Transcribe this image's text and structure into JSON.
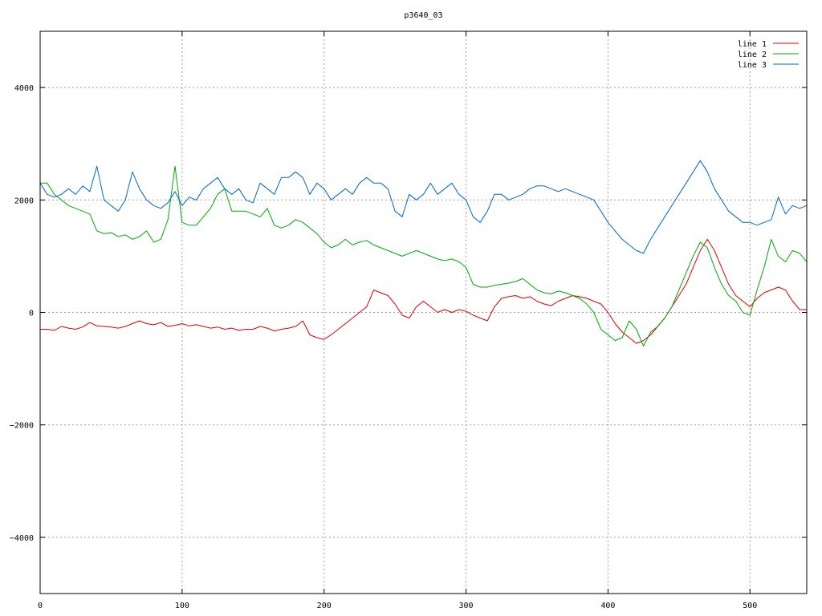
{
  "chart_data": {
    "type": "line",
    "title": "p3640_03",
    "xlabel": "",
    "ylabel": "",
    "xlim": [
      0,
      540
    ],
    "ylim": [
      -5000,
      5000
    ],
    "xticks": [
      0,
      100,
      200,
      300,
      400,
      500
    ],
    "yticks": [
      -4000,
      -2000,
      0,
      2000,
      4000
    ],
    "xtick_labels": [
      "0",
      "100",
      "200",
      "300",
      "400",
      "500"
    ],
    "ytick_labels": [
      "−4000",
      "−2000",
      "0",
      "2000",
      "4000"
    ],
    "grid": true,
    "legend_position": "top-right",
    "series": [
      {
        "name": "line 1",
        "color": "#dd0000",
        "x": [
          0,
          5,
          10,
          15,
          20,
          25,
          30,
          35,
          40,
          45,
          50,
          55,
          60,
          65,
          70,
          75,
          80,
          85,
          90,
          95,
          100,
          105,
          110,
          115,
          120,
          125,
          130,
          135,
          140,
          145,
          150,
          155,
          160,
          165,
          170,
          175,
          180,
          185,
          190,
          195,
          200,
          205,
          210,
          215,
          220,
          225,
          230,
          235,
          240,
          245,
          250,
          255,
          260,
          265,
          270,
          275,
          280,
          285,
          290,
          295,
          300,
          305,
          310,
          315,
          320,
          325,
          330,
          335,
          340,
          345,
          350,
          355,
          360,
          365,
          370,
          375,
          380,
          385,
          390,
          395,
          400,
          405,
          410,
          415,
          420,
          425,
          430,
          435,
          440,
          445,
          450,
          455,
          460,
          465,
          470,
          475,
          480,
          485,
          490,
          495,
          500,
          505,
          510,
          515,
          520,
          525,
          530,
          535,
          540
        ],
        "y": [
          -300,
          -300,
          -320,
          -250,
          -280,
          -300,
          -260,
          -180,
          -240,
          -250,
          -260,
          -280,
          -250,
          -200,
          -150,
          -200,
          -220,
          -180,
          -250,
          -230,
          -200,
          -240,
          -220,
          -250,
          -280,
          -260,
          -300,
          -280,
          -320,
          -300,
          -300,
          -250,
          -280,
          -330,
          -300,
          -280,
          -250,
          -150,
          -400,
          -450,
          -480,
          -400,
          -300,
          -200,
          -100,
          0,
          100,
          400,
          350,
          300,
          150,
          -50,
          -100,
          100,
          200,
          100,
          0,
          50,
          0,
          50,
          20,
          -50,
          -100,
          -150,
          100,
          250,
          280,
          300,
          250,
          280,
          200,
          150,
          120,
          200,
          250,
          300,
          280,
          250,
          200,
          150,
          0,
          -200,
          -350,
          -450,
          -550,
          -500,
          -400,
          -250,
          -100,
          100,
          300,
          500,
          800,
          1100,
          1300,
          1100,
          800,
          500,
          300,
          200,
          100,
          250,
          350,
          400,
          450,
          400,
          200,
          50,
          50
        ],
        "stroke_width": 1
      },
      {
        "name": "line 2",
        "color": "#00aa00",
        "x": [
          0,
          5,
          10,
          15,
          20,
          25,
          30,
          35,
          40,
          45,
          50,
          55,
          60,
          65,
          70,
          75,
          80,
          85,
          90,
          95,
          100,
          105,
          110,
          115,
          120,
          125,
          130,
          135,
          140,
          145,
          150,
          155,
          160,
          165,
          170,
          175,
          180,
          185,
          190,
          195,
          200,
          205,
          210,
          215,
          220,
          225,
          230,
          235,
          240,
          245,
          250,
          255,
          260,
          265,
          270,
          275,
          280,
          285,
          290,
          295,
          300,
          305,
          310,
          315,
          320,
          325,
          330,
          335,
          340,
          345,
          350,
          355,
          360,
          365,
          370,
          375,
          380,
          385,
          390,
          395,
          400,
          405,
          410,
          415,
          420,
          425,
          430,
          435,
          440,
          445,
          450,
          455,
          460,
          465,
          470,
          475,
          480,
          485,
          490,
          495,
          500,
          505,
          510,
          515,
          520,
          525,
          530,
          535,
          540
        ],
        "y": [
          2300,
          2300,
          2100,
          2000,
          1900,
          1850,
          1800,
          1750,
          1450,
          1400,
          1420,
          1350,
          1380,
          1300,
          1350,
          1450,
          1250,
          1300,
          1650,
          2600,
          1600,
          1550,
          1550,
          1700,
          1850,
          2100,
          2200,
          1800,
          1800,
          1800,
          1750,
          1700,
          1850,
          1550,
          1500,
          1550,
          1650,
          1600,
          1500,
          1400,
          1250,
          1150,
          1200,
          1300,
          1200,
          1250,
          1280,
          1200,
          1150,
          1100,
          1050,
          1000,
          1050,
          1100,
          1050,
          1000,
          950,
          920,
          950,
          900,
          800,
          500,
          450,
          450,
          480,
          500,
          520,
          550,
          600,
          500,
          400,
          350,
          330,
          380,
          350,
          300,
          250,
          150,
          0,
          -300,
          -400,
          -500,
          -450,
          -150,
          -300,
          -600,
          -350,
          -250,
          -100,
          100,
          400,
          700,
          1000,
          1250,
          1150,
          800,
          500,
          300,
          200,
          0,
          -50,
          400,
          800,
          1300,
          1000,
          900,
          1100,
          1050,
          900
        ],
        "stroke_width": 1
      },
      {
        "name": "line 3",
        "color": "#0066cc",
        "x": [
          0,
          5,
          10,
          15,
          20,
          25,
          30,
          35,
          40,
          45,
          50,
          55,
          60,
          65,
          70,
          75,
          80,
          85,
          90,
          95,
          100,
          105,
          110,
          115,
          120,
          125,
          130,
          135,
          140,
          145,
          150,
          155,
          160,
          165,
          170,
          175,
          180,
          185,
          190,
          195,
          200,
          205,
          210,
          215,
          220,
          225,
          230,
          235,
          240,
          245,
          250,
          255,
          260,
          265,
          270,
          275,
          280,
          285,
          290,
          295,
          300,
          305,
          310,
          315,
          320,
          325,
          330,
          335,
          340,
          345,
          350,
          355,
          360,
          365,
          370,
          375,
          380,
          385,
          390,
          395,
          400,
          405,
          410,
          415,
          420,
          425,
          430,
          435,
          440,
          445,
          450,
          455,
          460,
          465,
          470,
          475,
          480,
          485,
          490,
          495,
          500,
          505,
          510,
          515,
          520,
          525,
          530,
          535,
          540
        ],
        "y": [
          2300,
          2100,
          2050,
          2100,
          2200,
          2100,
          2250,
          2150,
          2600,
          2000,
          1900,
          1800,
          2000,
          2500,
          2200,
          2000,
          1900,
          1850,
          1950,
          2150,
          1900,
          2050,
          2000,
          2200,
          2300,
          2400,
          2200,
          2100,
          2200,
          2000,
          1950,
          2300,
          2200,
          2100,
          2400,
          2400,
          2500,
          2400,
          2100,
          2300,
          2200,
          2000,
          2100,
          2200,
          2100,
          2300,
          2400,
          2300,
          2300,
          2200,
          1800,
          1700,
          2100,
          2000,
          2100,
          2300,
          2100,
          2200,
          2300,
          2100,
          2000,
          1700,
          1600,
          1800,
          2100,
          2100,
          2000,
          2050,
          2100,
          2200,
          2250,
          2250,
          2200,
          2150,
          2200,
          2150,
          2100,
          2050,
          2000,
          1800,
          1600,
          1450,
          1300,
          1200,
          1100,
          1050,
          1300,
          1500,
          1700,
          1900,
          2100,
          2300,
          2500,
          2700,
          2500,
          2200,
          2000,
          1800,
          1700,
          1600,
          1600,
          1550,
          1600,
          1650,
          2050,
          1750,
          1900,
          1850,
          1900
        ],
        "stroke_width": 1
      }
    ]
  }
}
